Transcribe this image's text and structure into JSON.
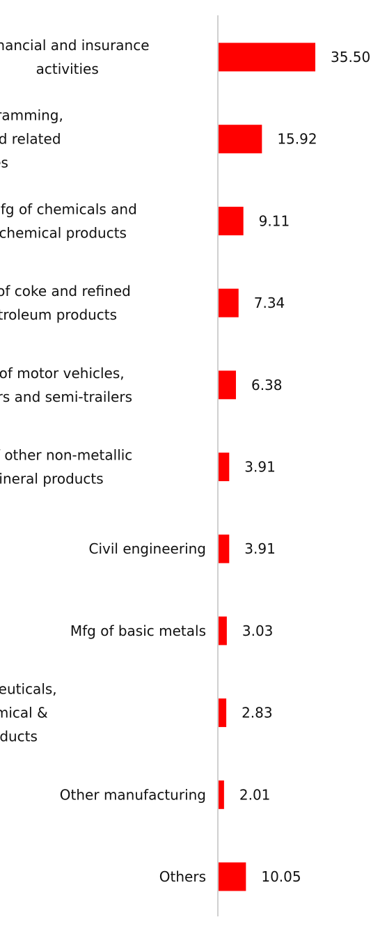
{
  "chart_data": {
    "type": "bar",
    "orientation": "horizontal",
    "categories": [
      "Financial and insurance activities",
      "Computer programming, consultancy and related activities",
      "Mfg of chemicals and chemical products",
      "Mfg of coke and refined petroleum products",
      "Mfg of motor vehicles, trailers and semi-trailers",
      "Mfg of other non-metallic mineral products",
      "Civil engineering",
      "Mfg of basic metals",
      "Mfg of pharmaceuticals, medicinal chemical & botanical products",
      "Other manufacturing",
      "Others"
    ],
    "category_label_lines": [
      [
        "Financial and insurance",
        "activities"
      ],
      [
        "Computer programming,",
        "consultancy and related",
        "activities"
      ],
      [
        "Mfg of chemicals and",
        "chemical products"
      ],
      [
        "Mfg of coke and refined",
        "petroleum products"
      ],
      [
        "Mfg of motor vehicles,",
        "trailers and semi-trailers"
      ],
      [
        "Mfg of other non-metallic",
        "mineral products"
      ],
      [
        "Civil engineering"
      ],
      [
        "Mfg of basic metals"
      ],
      [
        "Mfg of pharmaceuticals,",
        "medicinal chemical &",
        "botanical products"
      ],
      [
        "Other manufacturing"
      ],
      [
        "Others"
      ]
    ],
    "values": [
      35.5,
      15.92,
      9.11,
      7.34,
      6.38,
      3.91,
      3.91,
      3.03,
      2.83,
      2.01,
      10.05
    ],
    "value_labels": [
      "35.50",
      "15.92",
      "9.11",
      "7.34",
      "6.38",
      "3.91",
      "3.91",
      "3.03",
      "2.83",
      "2.01",
      "10.05"
    ],
    "bar_color": "#ff0000",
    "axis_color": "#d0d0d0",
    "title": "",
    "xlabel": "",
    "ylabel": "",
    "xlim": [
      0,
      35.5
    ],
    "grid": false,
    "legend": "none"
  }
}
